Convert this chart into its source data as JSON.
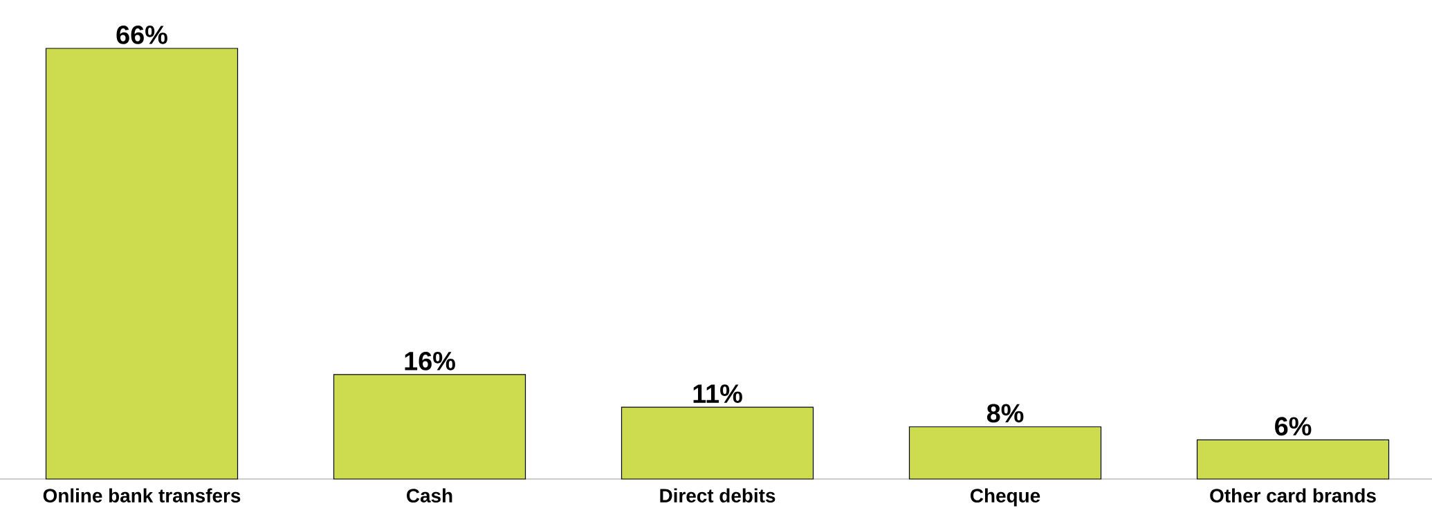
{
  "chart_data": {
    "type": "bar",
    "categories": [
      "Online bank transfers",
      "Cash",
      "Direct debits",
      "Cheque",
      "Other card brands"
    ],
    "values": [
      66,
      16,
      11,
      8,
      6
    ],
    "color": "#cddc4f",
    "value_labels": [
      "66%",
      "16%",
      "11%",
      "8%",
      "6%"
    ]
  }
}
